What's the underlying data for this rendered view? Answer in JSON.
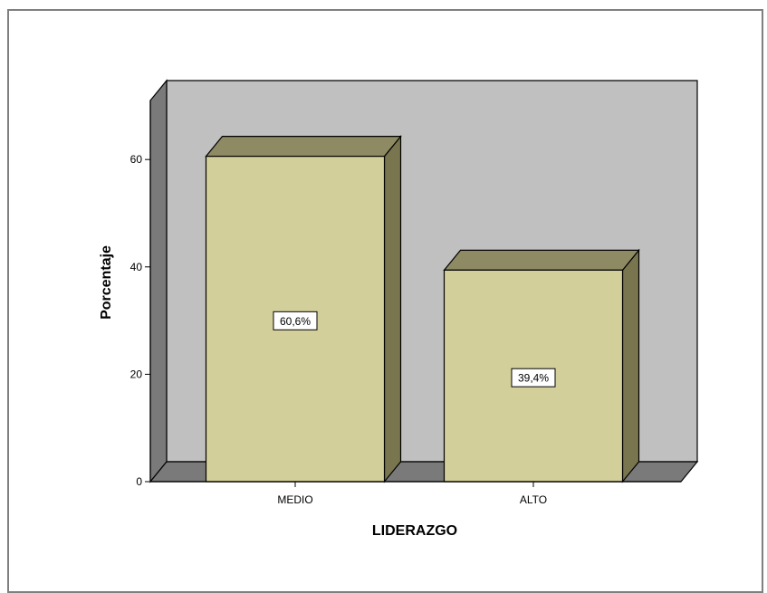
{
  "chart_data": {
    "type": "bar",
    "categories": [
      "MEDIO",
      "ALTO"
    ],
    "values": [
      60.6,
      39.4
    ],
    "data_labels": [
      "60,6%",
      "39,4%"
    ],
    "xlabel": "LIDERAZGO",
    "ylabel": "Porcentaje",
    "ylim": [
      0,
      71
    ],
    "yticks": [
      0,
      20,
      40,
      60
    ],
    "ytick_labels": [
      "0",
      "20",
      "40",
      "60"
    ],
    "style": "3d",
    "grid": false,
    "colors": {
      "bar_front": "#d3cf9b",
      "bar_top": "#8e8b64",
      "bar_side": "#78754f",
      "back_wall": "#c0c0c0",
      "side_wall": "#7a7a7a",
      "floor": "#7a7a7a",
      "border": "#000000"
    }
  }
}
